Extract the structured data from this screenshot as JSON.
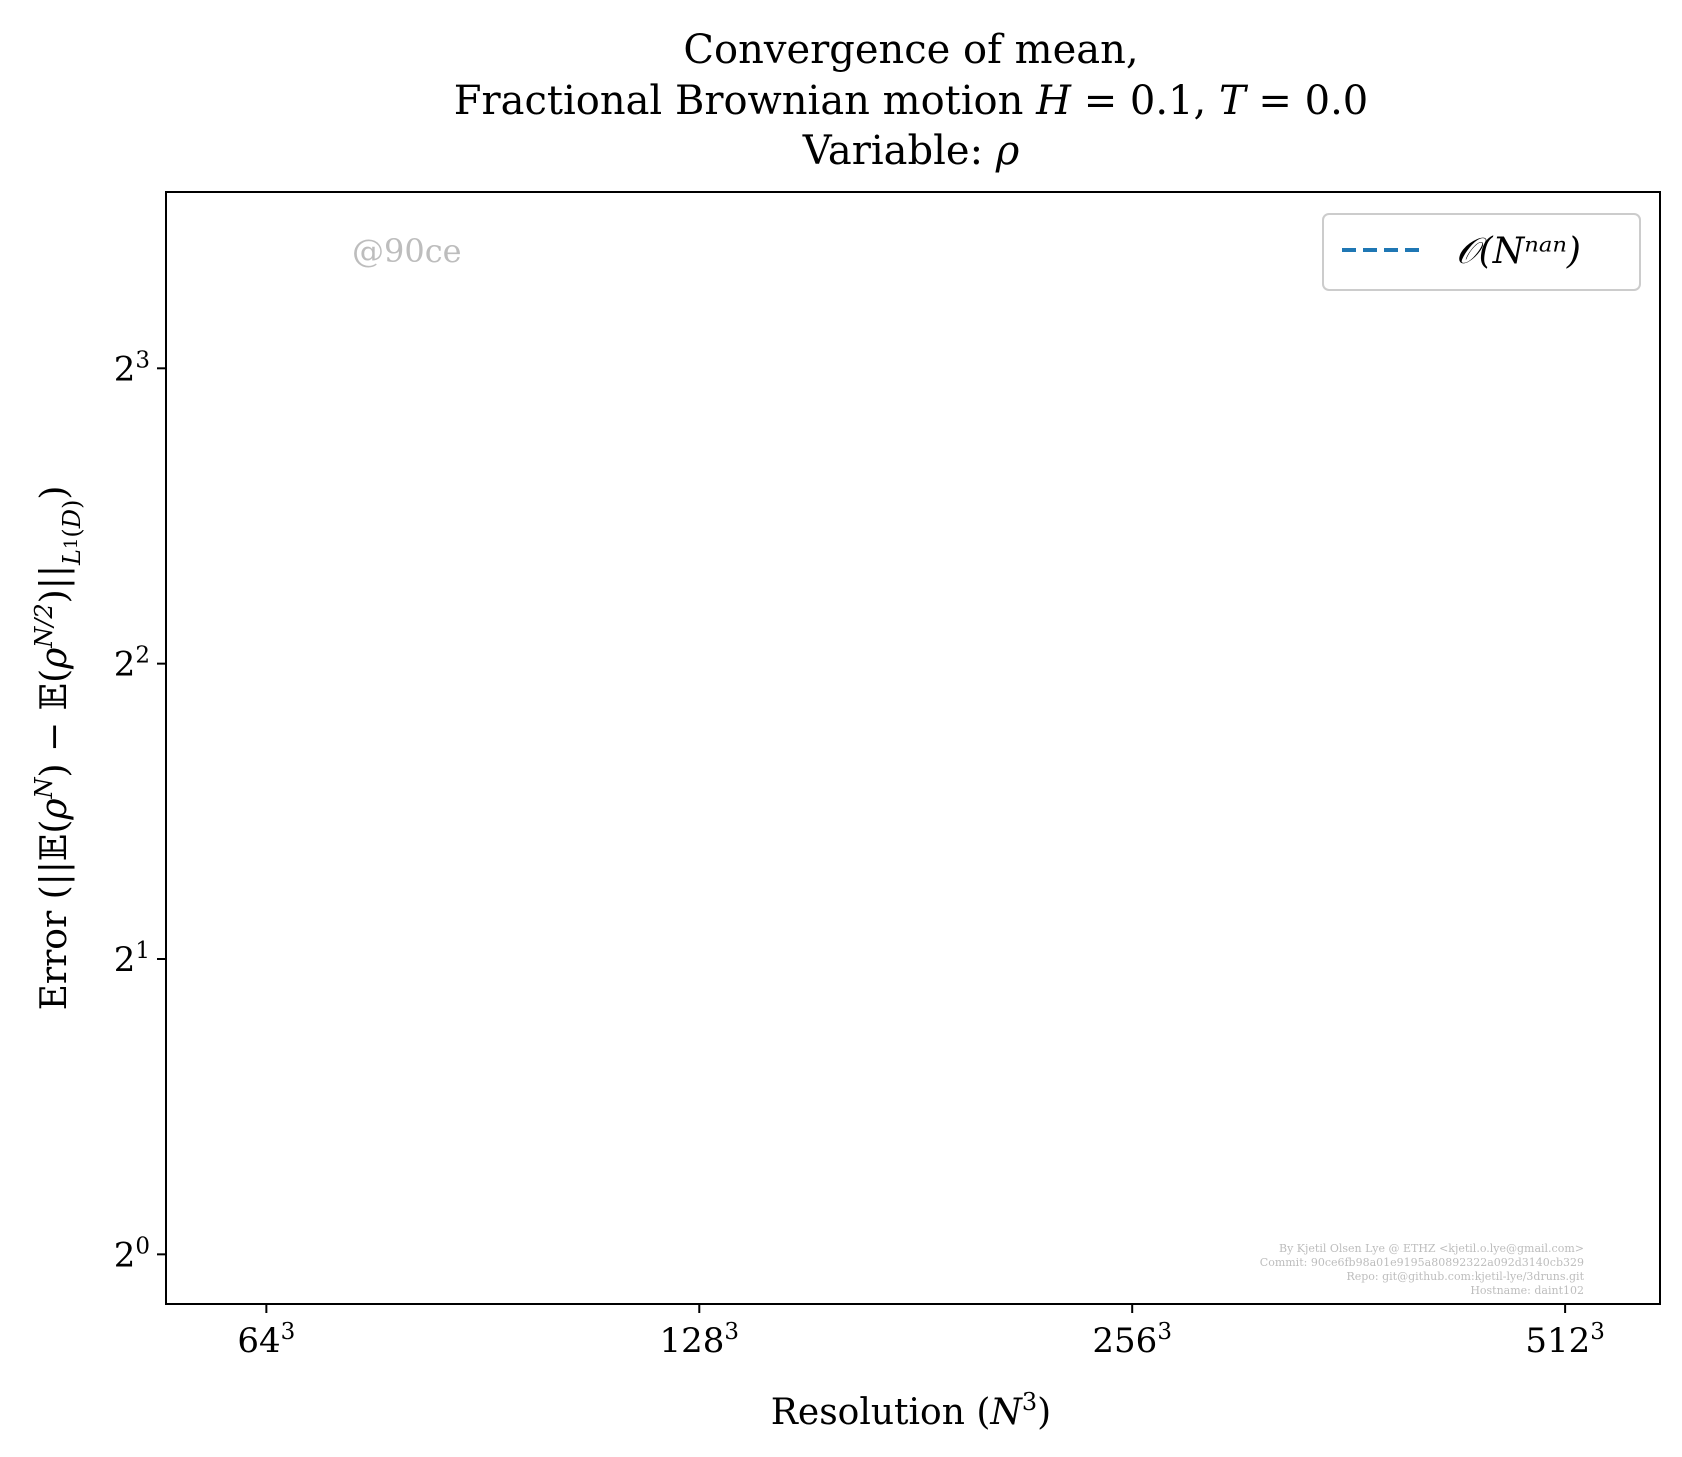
{
  "chart_data": {
    "type": "line",
    "title_lines": [
      "Convergence of mean,",
      "Fractional Brownian motion H = 0.1, T = 0.0",
      "Variable: ρ"
    ],
    "xlabel": "Resolution (N³)",
    "ylabel": "Error (||𝔼(ρᴺ) − 𝔼(ρᴺ/²)||L¹(D))",
    "x_scale": "log2",
    "y_scale": "log2",
    "x_ticks": [
      {
        "value": 64,
        "base": "64",
        "exp": "3"
      },
      {
        "value": 128,
        "base": "128",
        "exp": "3"
      },
      {
        "value": 256,
        "base": "256",
        "exp": "3"
      },
      {
        "value": 512,
        "base": "512",
        "exp": "3"
      }
    ],
    "y_ticks": [
      {
        "value": 1,
        "base": "2",
        "exp": "0"
      },
      {
        "value": 2,
        "base": "2",
        "exp": "1"
      },
      {
        "value": 4,
        "base": "2",
        "exp": "2"
      },
      {
        "value": 8,
        "base": "2",
        "exp": "3"
      }
    ],
    "xlim": [
      54.5,
      596
    ],
    "ylim": [
      0.89,
      12.1
    ],
    "grid": false,
    "legend_position": "top-right",
    "series": [
      {
        "name": "𝒪(Nⁿᵃⁿ)",
        "style": "dashed",
        "color": "#1f77b4",
        "x": [],
        "y": []
      }
    ],
    "watermark": "@90ce",
    "credits": [
      "By Kjetil Olsen Lye @ ETHZ <kjetil.o.lye@gmail.com>",
      "Commit: 90ce6fb98a01e9195a80892322a092d3140cb329",
      "Repo: git@github.com:kjetil-lye/3druns.git",
      "Hostname: daint102"
    ]
  }
}
